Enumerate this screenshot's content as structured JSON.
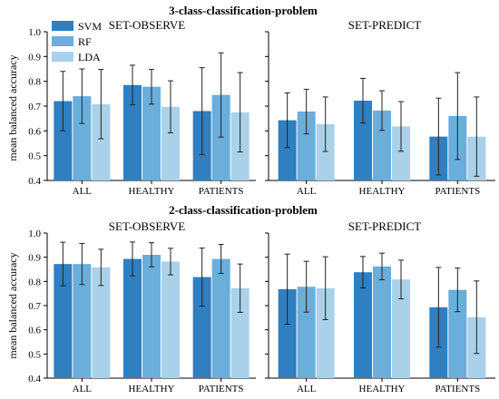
{
  "chart_data": [
    {
      "type": "bar",
      "row_title": "3-class-classification-problem",
      "title": "SET-OBSERVE",
      "ylabel": "mean balanced accuracy",
      "ylim": [
        0.4,
        1.0
      ],
      "yticks": [
        "0.4",
        "0.5",
        "0.6",
        "0.7",
        "0.8",
        "0.9",
        "1.0"
      ],
      "categories": [
        "ALL",
        "HEALTHY",
        "PATIENTS"
      ],
      "series": [
        {
          "name": "SVM",
          "values": [
            0.72,
            0.785,
            0.68
          ],
          "err": [
            0.12,
            0.08,
            0.175
          ]
        },
        {
          "name": "RF",
          "values": [
            0.74,
            0.778,
            0.745
          ],
          "err": [
            0.11,
            0.07,
            0.17
          ]
        },
        {
          "name": "LDA",
          "values": [
            0.708,
            0.697,
            0.675
          ],
          "err": [
            0.14,
            0.105,
            0.16
          ]
        }
      ]
    },
    {
      "type": "bar",
      "title": "SET-PREDICT",
      "ylim": [
        0.4,
        1.0
      ],
      "categories": [
        "ALL",
        "HEALTHY",
        "PATIENTS"
      ],
      "series": [
        {
          "name": "SVM",
          "values": [
            0.643,
            0.722,
            0.577
          ],
          "err": [
            0.11,
            0.09,
            0.155
          ]
        },
        {
          "name": "RF",
          "values": [
            0.678,
            0.682,
            0.66
          ],
          "err": [
            0.09,
            0.08,
            0.175
          ]
        },
        {
          "name": "LDA",
          "values": [
            0.627,
            0.618,
            0.577
          ],
          "err": [
            0.11,
            0.1,
            0.16
          ]
        }
      ]
    },
    {
      "type": "bar",
      "row_title": "2-class-classification-problem",
      "title": "SET-OBSERVE",
      "ylabel": "mean balanced accuracy",
      "ylim": [
        0.4,
        1.0
      ],
      "yticks": [
        "0.4",
        "0.5",
        "0.6",
        "0.7",
        "0.8",
        "0.9",
        "1.0"
      ],
      "categories": [
        "ALL",
        "HEALTHY",
        "PATIENTS"
      ],
      "series": [
        {
          "name": "SVM",
          "values": [
            0.872,
            0.893,
            0.818
          ],
          "err": [
            0.09,
            0.07,
            0.12
          ]
        },
        {
          "name": "RF",
          "values": [
            0.872,
            0.91,
            0.893
          ],
          "err": [
            0.085,
            0.05,
            0.06
          ]
        },
        {
          "name": "LDA",
          "values": [
            0.858,
            0.882,
            0.772
          ],
          "err": [
            0.075,
            0.055,
            0.1
          ]
        }
      ]
    },
    {
      "type": "bar",
      "title": "SET-PREDICT",
      "ylim": [
        0.4,
        1.0
      ],
      "categories": [
        "ALL",
        "HEALTHY",
        "PATIENTS"
      ],
      "series": [
        {
          "name": "SVM",
          "values": [
            0.768,
            0.838,
            0.693
          ],
          "err": [
            0.145,
            0.065,
            0.165
          ]
        },
        {
          "name": "RF",
          "values": [
            0.778,
            0.862,
            0.765
          ],
          "err": [
            0.105,
            0.055,
            0.09
          ]
        },
        {
          "name": "LDA",
          "values": [
            0.772,
            0.808,
            0.652
          ],
          "err": [
            0.13,
            0.08,
            0.15
          ]
        }
      ]
    }
  ],
  "legend": {
    "items": [
      {
        "name": "SVM",
        "color": "#2f7fc1"
      },
      {
        "name": "RF",
        "color": "#6aaedc"
      },
      {
        "name": "LDA",
        "color": "#a9d1ea"
      }
    ]
  },
  "colors": {
    "SVM": "#2f7fc1",
    "RF": "#6aaedc",
    "LDA": "#a9d1ea"
  }
}
